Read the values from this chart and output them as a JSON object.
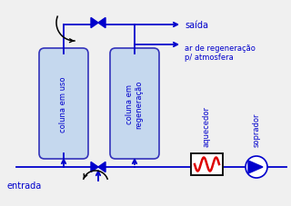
{
  "bg_color": "#f0f0f0",
  "blue": "#0000cc",
  "red": "#dd0000",
  "col1_label": "coluna em uso",
  "col2_label": "coluna em\nregeneração",
  "heater_label": "aquecedor",
  "blower_label": "soprador",
  "entrada_label": "entrada",
  "saida_label": "saída",
  "regen_label": "ar de regeneração\np/ atmosfera",
  "col_fill": "#c5d8ee",
  "col_edge": "#3333bb",
  "lw": 1.3
}
